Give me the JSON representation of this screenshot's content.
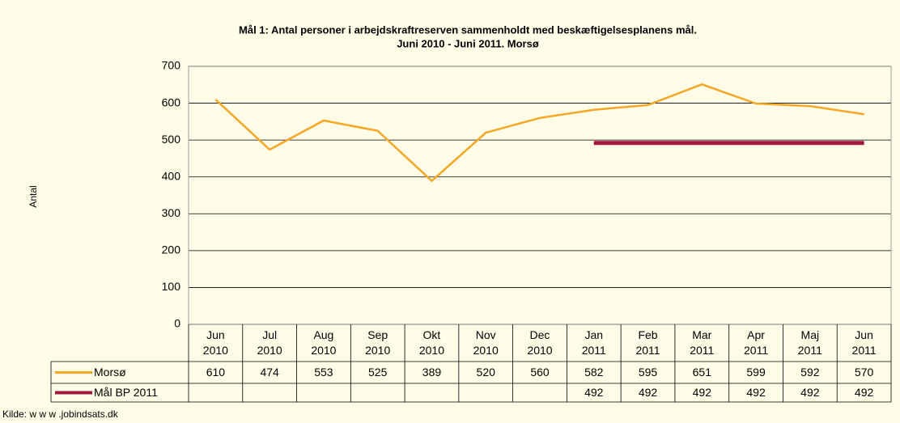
{
  "chart_data": {
    "type": "line",
    "title": "Mål 1: Antal personer i arbejdskraftreserven sammenholdt med beskæftigelsesplanens mål.",
    "subtitle": "Juni 2010 - Juni 2011. Morsø",
    "y_label": "Antal",
    "source": "Kilde: w w w .jobindsats.dk",
    "categories": [
      "Jun 2010",
      "Jul 2010",
      "Aug 2010",
      "Sep 2010",
      "Okt 2010",
      "Nov 2010",
      "Dec 2010",
      "Jan 2011",
      "Feb 2011",
      "Mar 2011",
      "Apr 2011",
      "Maj 2011",
      "Jun 2011"
    ],
    "series": [
      {
        "name": "Morsø",
        "color": "#f5a623",
        "values": [
          610,
          474,
          553,
          525,
          389,
          520,
          560,
          582,
          595,
          651,
          599,
          592,
          570
        ]
      },
      {
        "name": "Mål BP 2011",
        "color": "#a3173f",
        "values": [
          null,
          null,
          null,
          null,
          null,
          null,
          null,
          492,
          492,
          492,
          492,
          492,
          492
        ]
      }
    ],
    "ylim": [
      0,
      700
    ],
    "yticks": [
      0,
      100,
      200,
      300,
      400,
      500,
      600,
      700
    ],
    "grid": true
  }
}
